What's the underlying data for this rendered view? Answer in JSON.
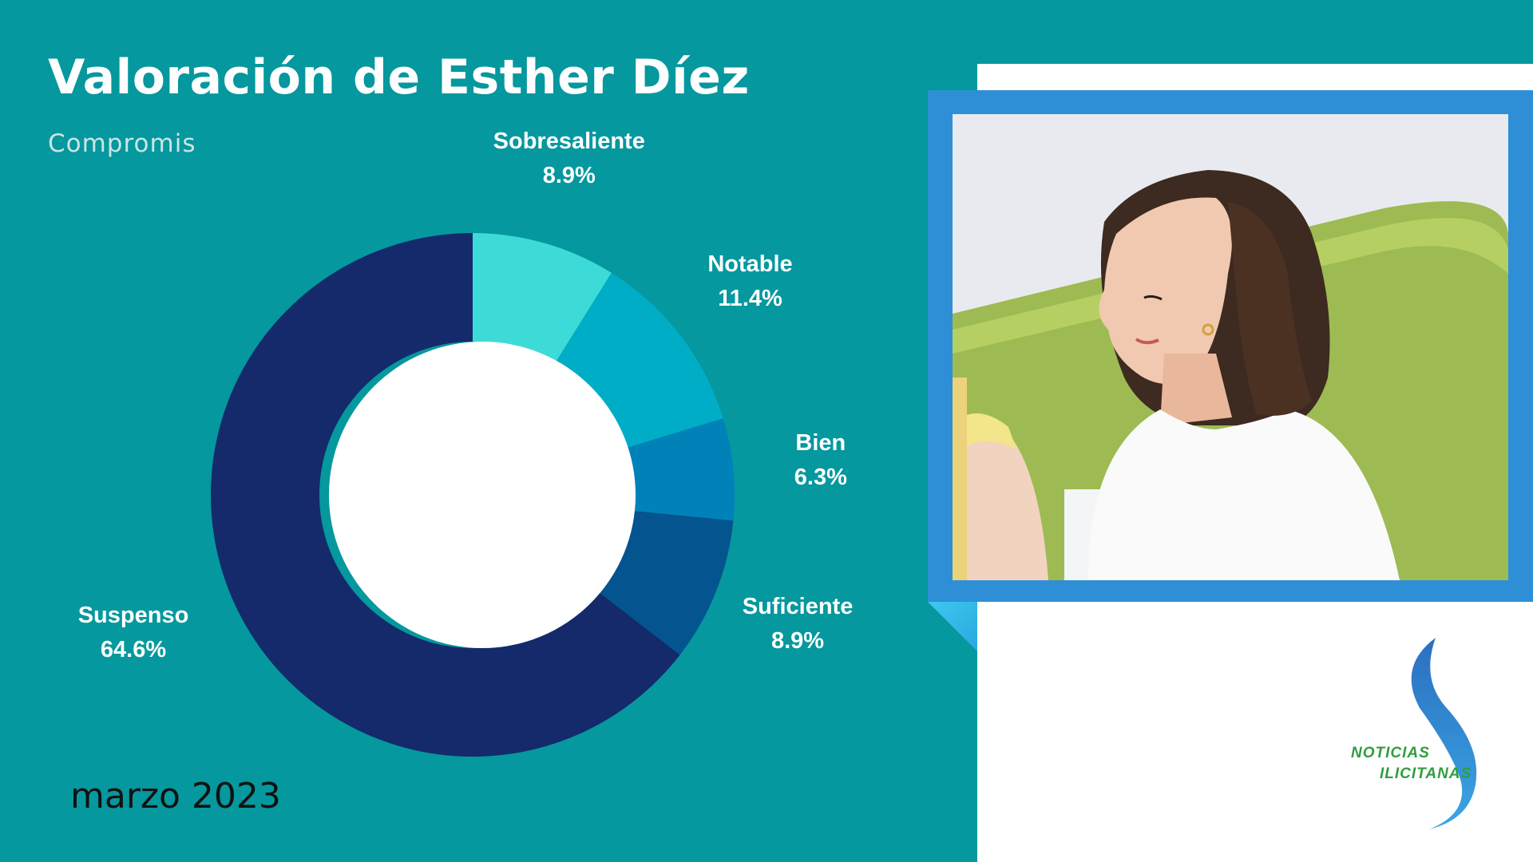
{
  "header": {
    "title": "Valoración de Esther Díez",
    "subtitle": "Compromis"
  },
  "footer": {
    "date": "marzo 2023"
  },
  "colors": {
    "background": "#05989e",
    "donut_hole": "#ffffff"
  },
  "chart_data": {
    "type": "pie",
    "donut": true,
    "title": "Valoración de Esther Díez",
    "subtitle": "Compromis",
    "categories": [
      "Sobresaliente",
      "Notable",
      "Bien",
      "Suficiente",
      "Suspenso"
    ],
    "values": [
      8.9,
      11.4,
      6.3,
      8.9,
      64.6
    ],
    "value_labels": [
      "8.9%",
      "11.4%",
      "6.3%",
      "8.9%",
      "64.6%"
    ],
    "unit": "%",
    "colors": [
      "#3ddbd8",
      "#00adc7",
      "#0082b8",
      "#03548f",
      "#142a6b"
    ],
    "start_angle": "12 o'clock",
    "direction": "clockwise",
    "label_placement": "outside"
  },
  "logo": {
    "line1": "NOTICIAS",
    "line2": "ILICITANAS",
    "icon": "s-swoosh-logo-icon"
  },
  "photo": {
    "icon": "portrait-photo"
  }
}
